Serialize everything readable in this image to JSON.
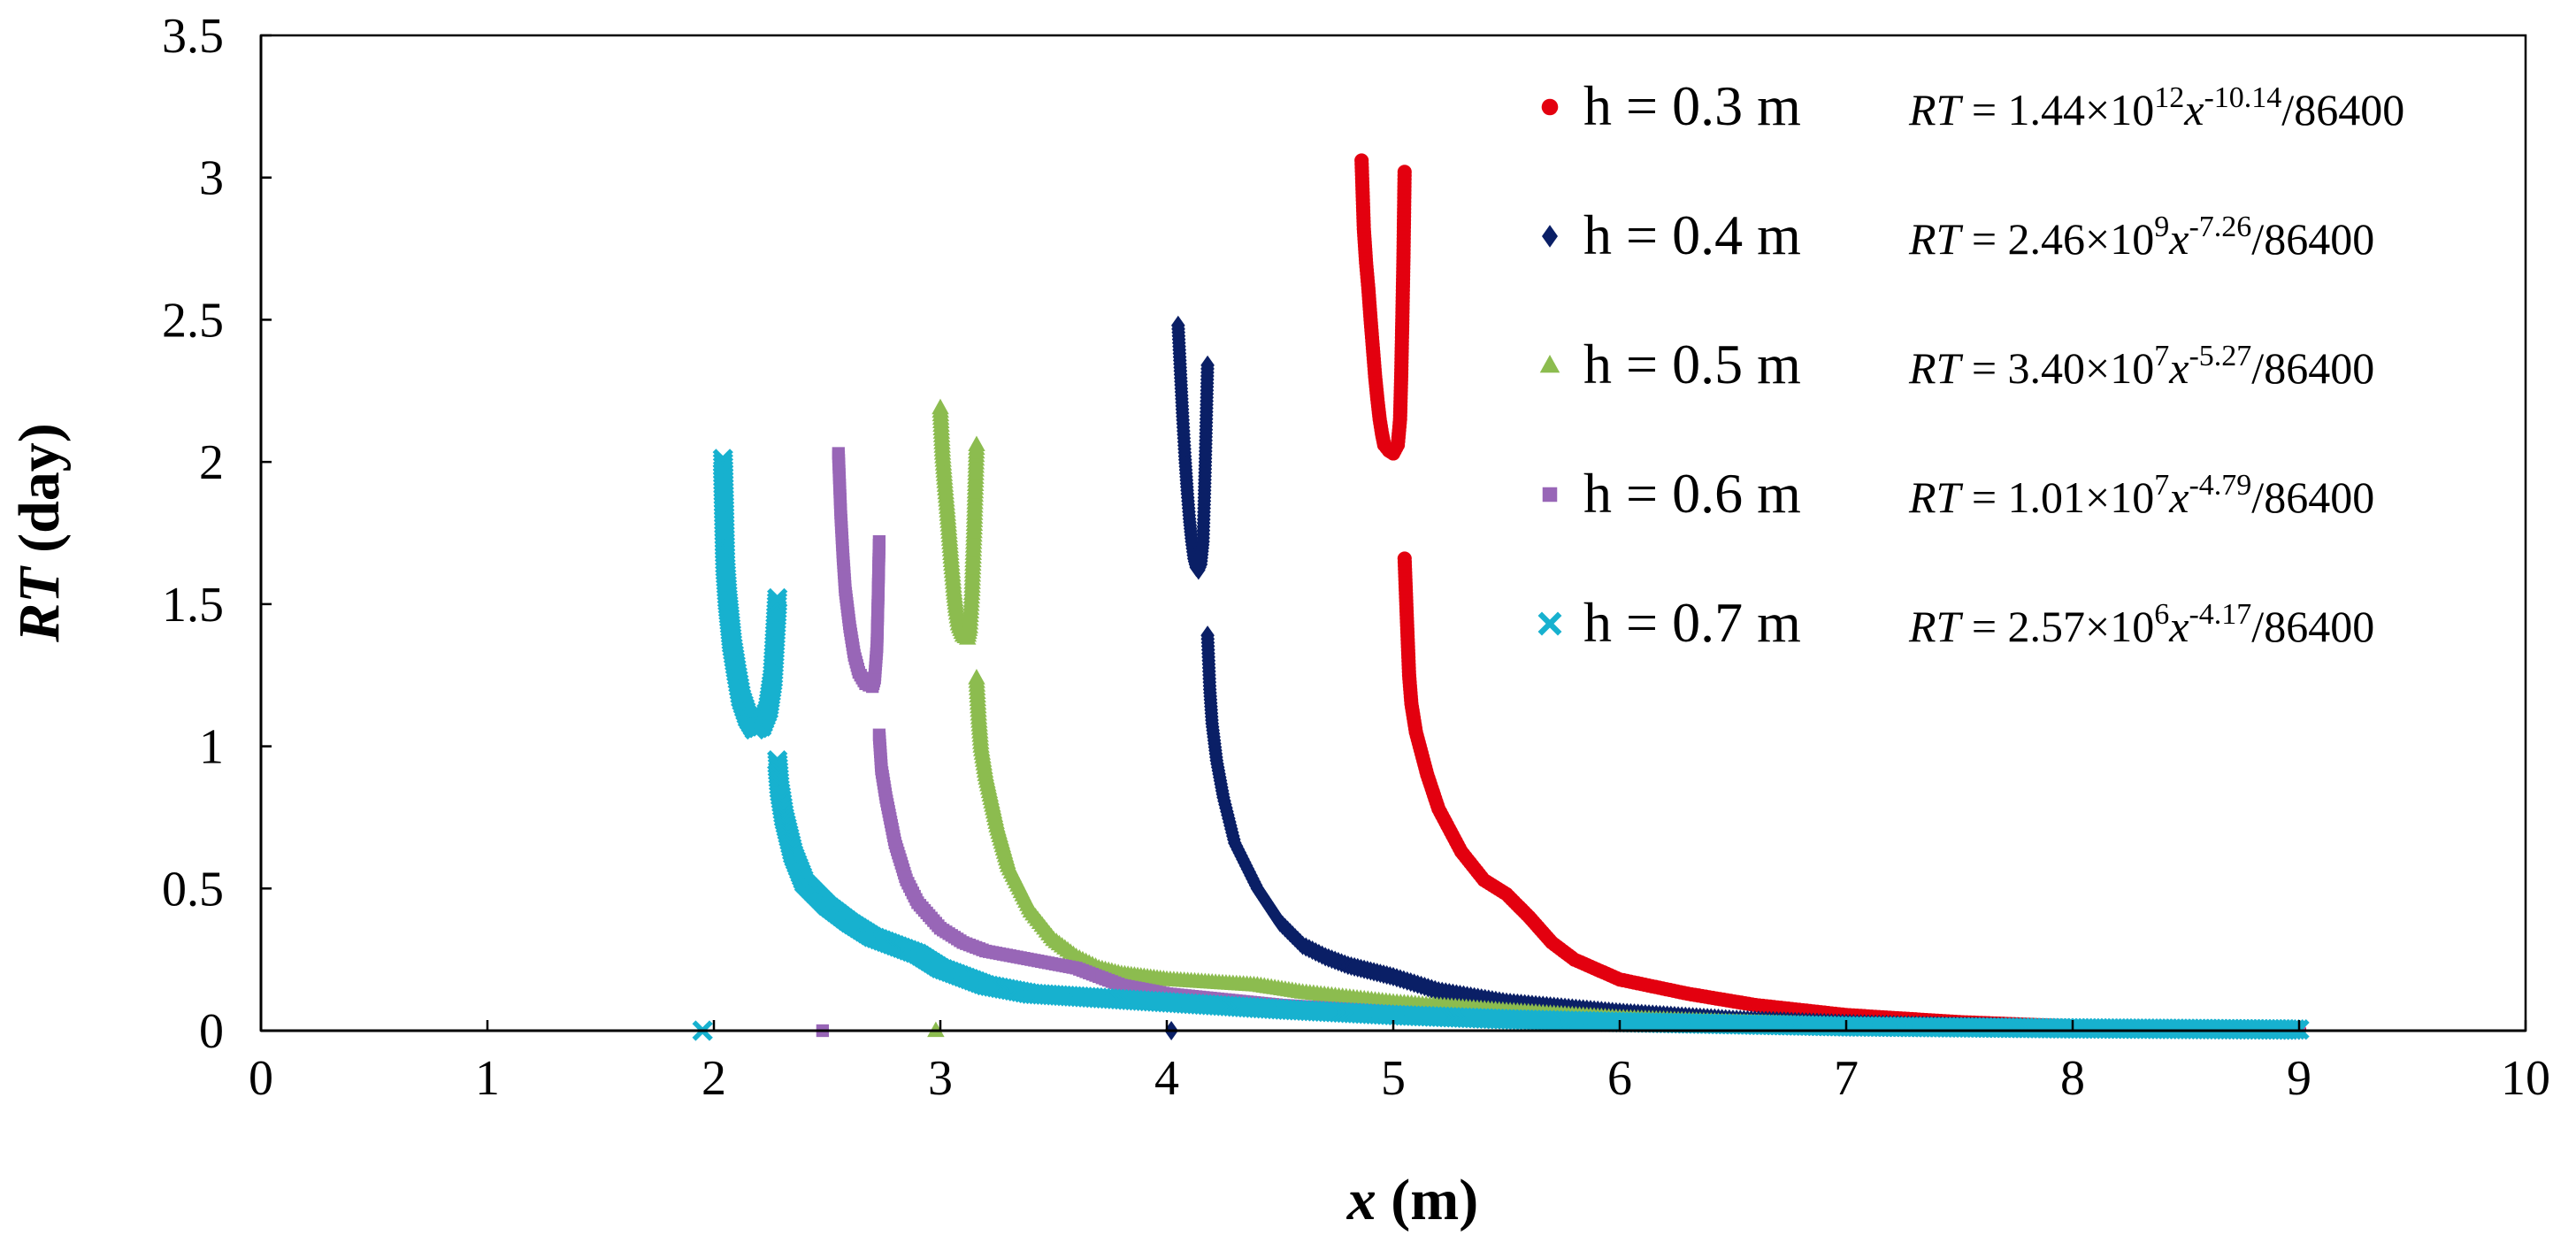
{
  "chart_data": {
    "type": "scatter",
    "title": "",
    "xlabel": {
      "var": "x",
      "unit": " (m)"
    },
    "ylabel": {
      "var": "RT",
      "unit": " (day)"
    },
    "xlim": [
      0,
      10
    ],
    "ylim": [
      0,
      3.5
    ],
    "xticks": [
      "0",
      "1",
      "2",
      "3",
      "4",
      "5",
      "6",
      "7",
      "8",
      "9",
      "10"
    ],
    "yticks": [
      "0",
      "0.5",
      "1",
      "1.5",
      "2",
      "2.5",
      "3",
      "3.5"
    ],
    "grid": false,
    "legend_position": "top-right",
    "series": [
      {
        "name": "h = 0.3 m",
        "color": "#e3000f",
        "marker": "circle",
        "equation": {
          "lhs": "RT",
          "coef": " = 1.44×10",
          "coef_exp": "12",
          "var": "x",
          "exp": "-10.14",
          "tail": "/86400"
        },
        "upper_branch": [
          [
            4.86,
            3.06
          ],
          [
            4.87,
            2.82
          ],
          [
            4.88,
            2.7
          ],
          [
            4.89,
            2.61
          ],
          [
            4.9,
            2.5
          ],
          [
            4.91,
            2.4
          ],
          [
            4.92,
            2.3
          ],
          [
            4.93,
            2.22
          ],
          [
            4.94,
            2.15
          ],
          [
            4.95,
            2.1
          ],
          [
            4.96,
            2.06
          ],
          [
            4.98,
            2.04
          ],
          [
            5.0,
            2.03
          ],
          [
            5.02,
            2.06
          ],
          [
            5.03,
            2.15
          ],
          [
            5.035,
            2.3
          ],
          [
            5.04,
            2.5
          ],
          [
            5.045,
            2.72
          ],
          [
            5.05,
            3.02
          ]
        ],
        "lower_branch": [
          [
            5.05,
            1.66
          ],
          [
            5.06,
            1.45
          ],
          [
            5.07,
            1.25
          ],
          [
            5.08,
            1.15
          ],
          [
            5.1,
            1.05
          ],
          [
            5.15,
            0.9
          ],
          [
            5.2,
            0.78
          ],
          [
            5.3,
            0.63
          ],
          [
            5.4,
            0.53
          ],
          [
            5.5,
            0.48
          ],
          [
            5.6,
            0.4
          ],
          [
            5.7,
            0.31
          ],
          [
            5.8,
            0.25
          ],
          [
            6.0,
            0.18
          ],
          [
            6.3,
            0.13
          ],
          [
            6.6,
            0.09
          ],
          [
            7.0,
            0.055
          ],
          [
            7.5,
            0.03
          ],
          [
            8.0,
            0.015
          ],
          [
            8.5,
            0.007
          ],
          [
            9.0,
            0.003
          ]
        ],
        "zero_x": []
      },
      {
        "name": "h = 0.4 m",
        "color": "#0a1f66",
        "marker": "diamond",
        "equation": {
          "lhs": "RT",
          "coef": " = 2.46×10",
          "coef_exp": "9",
          "var": "x",
          "exp": "-7.26",
          "tail": "/86400"
        },
        "upper_branch": [
          [
            4.05,
            2.48
          ],
          [
            4.06,
            2.32
          ],
          [
            4.07,
            2.16
          ],
          [
            4.08,
            2.02
          ],
          [
            4.09,
            1.9
          ],
          [
            4.1,
            1.8
          ],
          [
            4.11,
            1.72
          ],
          [
            4.12,
            1.66
          ],
          [
            4.13,
            1.63
          ],
          [
            4.14,
            1.62
          ],
          [
            4.15,
            1.64
          ],
          [
            4.16,
            1.72
          ],
          [
            4.165,
            1.85
          ],
          [
            4.17,
            2.0
          ],
          [
            4.18,
            2.34
          ]
        ],
        "lower_branch": [
          [
            4.18,
            1.39
          ],
          [
            4.19,
            1.2
          ],
          [
            4.2,
            1.08
          ],
          [
            4.22,
            0.95
          ],
          [
            4.25,
            0.82
          ],
          [
            4.3,
            0.66
          ],
          [
            4.4,
            0.5
          ],
          [
            4.5,
            0.38
          ],
          [
            4.6,
            0.3
          ],
          [
            4.7,
            0.26
          ],
          [
            4.8,
            0.23
          ],
          [
            4.9,
            0.21
          ],
          [
            5.0,
            0.19
          ],
          [
            5.2,
            0.14
          ],
          [
            5.5,
            0.1
          ],
          [
            6.0,
            0.065
          ],
          [
            6.5,
            0.04
          ],
          [
            7.0,
            0.025
          ],
          [
            7.5,
            0.015
          ],
          [
            8.0,
            0.008
          ],
          [
            8.5,
            0.004
          ],
          [
            9.0,
            0.002
          ]
        ],
        "zero_x": [
          4.02
        ]
      },
      {
        "name": "h = 0.5 m",
        "color": "#8cbc4f",
        "marker": "triangle",
        "equation": {
          "lhs": "RT",
          "coef": " = 3.40×10",
          "coef_exp": "7",
          "var": "x",
          "exp": "-5.27",
          "tail": "/86400"
        },
        "upper_branch": [
          [
            3.0,
            2.19
          ],
          [
            3.01,
            2.03
          ],
          [
            3.02,
            1.93
          ],
          [
            3.03,
            1.84
          ],
          [
            3.04,
            1.74
          ],
          [
            3.05,
            1.64
          ],
          [
            3.06,
            1.55
          ],
          [
            3.07,
            1.48
          ],
          [
            3.08,
            1.43
          ],
          [
            3.1,
            1.39
          ],
          [
            3.12,
            1.38
          ],
          [
            3.13,
            1.42
          ],
          [
            3.14,
            1.55
          ],
          [
            3.15,
            1.78
          ],
          [
            3.16,
            2.06
          ]
        ],
        "lower_branch": [
          [
            3.16,
            1.24
          ],
          [
            3.17,
            1.1
          ],
          [
            3.18,
            1.0
          ],
          [
            3.2,
            0.9
          ],
          [
            3.25,
            0.72
          ],
          [
            3.3,
            0.58
          ],
          [
            3.4,
            0.42
          ],
          [
            3.5,
            0.32
          ],
          [
            3.6,
            0.26
          ],
          [
            3.7,
            0.22
          ],
          [
            3.8,
            0.2
          ],
          [
            3.9,
            0.19
          ],
          [
            4.0,
            0.18
          ],
          [
            4.2,
            0.17
          ],
          [
            4.4,
            0.16
          ],
          [
            4.6,
            0.135
          ],
          [
            5.0,
            0.1
          ],
          [
            5.5,
            0.07
          ],
          [
            6.0,
            0.045
          ],
          [
            6.5,
            0.03
          ],
          [
            7.0,
            0.02
          ],
          [
            8.0,
            0.008
          ],
          [
            9.0,
            0.003
          ]
        ],
        "zero_x": [
          2.98
        ]
      },
      {
        "name": "h = 0.6 m",
        "color": "#9866b7",
        "marker": "square",
        "equation": {
          "lhs": "RT",
          "coef": " = 1.01×10",
          "coef_exp": "7",
          "var": "x",
          "exp": "-4.79",
          "tail": "/86400"
        },
        "upper_branch": [
          [
            2.55,
            2.03
          ],
          [
            2.56,
            1.82
          ],
          [
            2.57,
            1.67
          ],
          [
            2.58,
            1.55
          ],
          [
            2.6,
            1.42
          ],
          [
            2.62,
            1.32
          ],
          [
            2.64,
            1.26
          ],
          [
            2.67,
            1.22
          ],
          [
            2.7,
            1.21
          ],
          [
            2.71,
            1.24
          ],
          [
            2.72,
            1.35
          ],
          [
            2.725,
            1.52
          ],
          [
            2.73,
            1.72
          ]
        ],
        "lower_branch": [
          [
            2.73,
            1.04
          ],
          [
            2.74,
            0.92
          ],
          [
            2.76,
            0.82
          ],
          [
            2.8,
            0.66
          ],
          [
            2.85,
            0.53
          ],
          [
            2.9,
            0.45
          ],
          [
            3.0,
            0.36
          ],
          [
            3.1,
            0.31
          ],
          [
            3.2,
            0.28
          ],
          [
            3.4,
            0.25
          ],
          [
            3.6,
            0.22
          ],
          [
            3.8,
            0.16
          ],
          [
            4.0,
            0.13
          ],
          [
            4.5,
            0.09
          ],
          [
            5.0,
            0.065
          ],
          [
            5.5,
            0.045
          ],
          [
            6.0,
            0.03
          ],
          [
            7.0,
            0.015
          ],
          [
            8.0,
            0.007
          ],
          [
            9.0,
            0.003
          ]
        ],
        "zero_x": [
          2.48
        ]
      },
      {
        "name": "h = 0.7 m",
        "color": "#17b1cf",
        "marker": "cross",
        "equation": {
          "lhs": "RT",
          "coef": " = 2.57×10",
          "coef_exp": "6",
          "var": "x",
          "exp": "-4.17",
          "tail": "/86400"
        },
        "upper_branch": [
          [
            2.04,
            2.01
          ],
          [
            2.05,
            1.64
          ],
          [
            2.06,
            1.52
          ],
          [
            2.07,
            1.44
          ],
          [
            2.08,
            1.36
          ],
          [
            2.1,
            1.26
          ],
          [
            2.12,
            1.17
          ],
          [
            2.15,
            1.1
          ],
          [
            2.18,
            1.06
          ],
          [
            2.21,
            1.07
          ],
          [
            2.24,
            1.13
          ],
          [
            2.26,
            1.24
          ],
          [
            2.27,
            1.38
          ],
          [
            2.28,
            1.52
          ]
        ],
        "lower_branch": [
          [
            2.28,
            0.95
          ],
          [
            2.29,
            0.85
          ],
          [
            2.31,
            0.75
          ],
          [
            2.35,
            0.62
          ],
          [
            2.4,
            0.52
          ],
          [
            2.5,
            0.44
          ],
          [
            2.6,
            0.38
          ],
          [
            2.7,
            0.33
          ],
          [
            2.8,
            0.3
          ],
          [
            2.9,
            0.27
          ],
          [
            3.0,
            0.22
          ],
          [
            3.2,
            0.16
          ],
          [
            3.4,
            0.13
          ],
          [
            3.6,
            0.12
          ],
          [
            4.0,
            0.1
          ],
          [
            4.5,
            0.075
          ],
          [
            5.0,
            0.055
          ],
          [
            5.5,
            0.04
          ],
          [
            6.0,
            0.03
          ],
          [
            7.0,
            0.015
          ],
          [
            8.0,
            0.008
          ],
          [
            8.5,
            0.006
          ],
          [
            9.0,
            0.004
          ]
        ],
        "zero_x": [
          1.95
        ]
      }
    ]
  }
}
